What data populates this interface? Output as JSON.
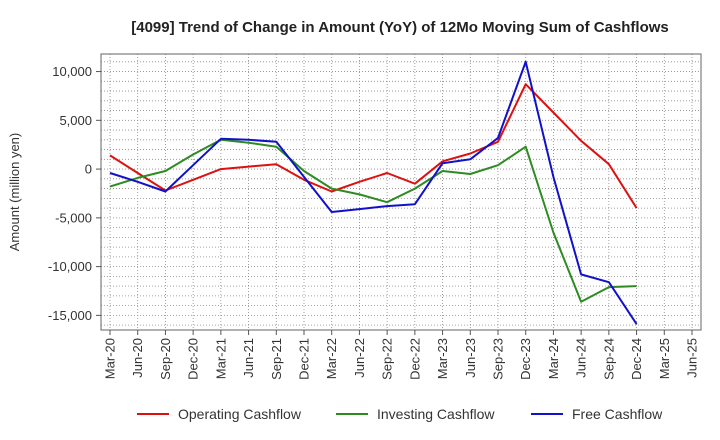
{
  "chart_data": {
    "type": "line",
    "title": "[4099]  Trend of Change in Amount (YoY) of 12Mo Moving Sum of Cashflows",
    "xlabel": "",
    "ylabel": "Amount (million yen)",
    "ylim": [
      -16500,
      11800
    ],
    "yticks": [
      10000,
      5000,
      0,
      -5000,
      -10000,
      -15000
    ],
    "ytick_labels": [
      "10,000",
      "5,000",
      "0",
      "-5,000",
      "-10,000",
      "-15,000"
    ],
    "categories": [
      "Mar-20",
      "Jun-20",
      "Sep-20",
      "Dec-20",
      "Mar-21",
      "Jun-21",
      "Sep-21",
      "Dec-21",
      "Mar-22",
      "Jun-22",
      "Sep-22",
      "Dec-22",
      "Mar-23",
      "Jun-23",
      "Sep-23",
      "Dec-23",
      "Mar-24",
      "Jun-24",
      "Sep-24",
      "Dec-24",
      "Mar-25",
      "Jun-25"
    ],
    "grid": true,
    "legend_position": "bottom",
    "series": [
      {
        "name": "Operating Cashflow",
        "color": "#dd1111",
        "values": [
          1400,
          -400,
          -2200,
          -1100,
          0,
          250,
          500,
          -1100,
          -2300,
          -1300,
          -400,
          -1500,
          800,
          1600,
          2800,
          8700,
          5800,
          2900,
          500,
          -4000,
          null,
          null
        ]
      },
      {
        "name": "Investing Cashflow",
        "color": "#2e8b22",
        "values": [
          -1800,
          -900,
          -200,
          1500,
          3000,
          2700,
          2300,
          -200,
          -2000,
          -2600,
          -3400,
          -2000,
          -200,
          -500,
          400,
          2300,
          -6500,
          -13600,
          -12100,
          -12000,
          null,
          null
        ]
      },
      {
        "name": "Free Cashflow",
        "color": "#1111cc",
        "values": [
          -400,
          -1300,
          -2300,
          400,
          3100,
          3000,
          2800,
          -800,
          -4400,
          -4100,
          -3800,
          -3600,
          600,
          1000,
          3200,
          11000,
          -800,
          -10800,
          -11600,
          -15900,
          null,
          null
        ]
      }
    ]
  }
}
